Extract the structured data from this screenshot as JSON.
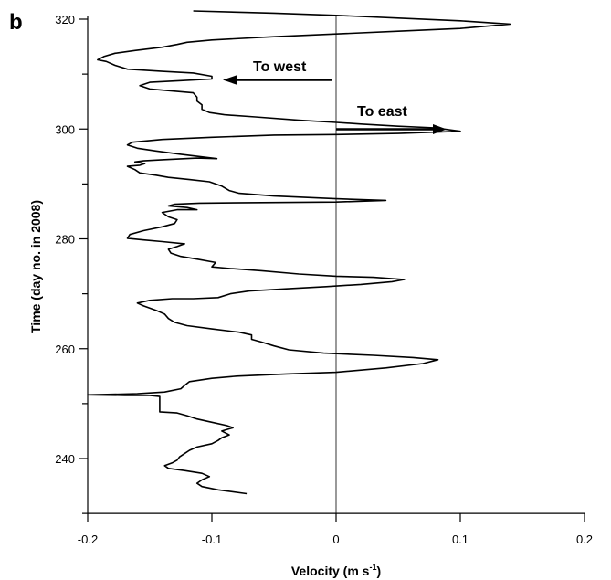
{
  "chart_data": {
    "type": "line",
    "panel_label": "b",
    "title": "",
    "xlabel": "Velocity (m s",
    "xlabel_sup": "-1",
    "xlabel_end": ")",
    "ylabel": "Time (day no. in 2008)",
    "xlim": [
      -0.2,
      0.2
    ],
    "ylim": [
      230,
      320
    ],
    "xticks": [
      -0.2,
      -0.1,
      0,
      0.1,
      0.2
    ],
    "xtick_labels": [
      "-0.2",
      "-0.1",
      "0",
      "0.1",
      "0.2"
    ],
    "yticks": [
      240,
      260,
      280,
      300,
      320
    ],
    "ytick_labels": [
      "240",
      "260",
      "280",
      "300",
      "320"
    ],
    "grid": false,
    "reference_line_x": 0,
    "annotations": [
      {
        "text": "To west",
        "direction": "west"
      },
      {
        "text": "To east",
        "direction": "east"
      }
    ],
    "series": [
      {
        "points": [
          [
            -0.072,
            233.6
          ],
          [
            -0.095,
            234.3
          ],
          [
            -0.108,
            234.9
          ],
          [
            -0.112,
            235.5
          ],
          [
            -0.108,
            236.1
          ],
          [
            -0.102,
            236.7
          ],
          [
            -0.108,
            237.3
          ],
          [
            -0.122,
            237.8
          ],
          [
            -0.135,
            238.2
          ],
          [
            -0.138,
            238.7
          ],
          [
            -0.132,
            239.2
          ],
          [
            -0.128,
            239.7
          ],
          [
            -0.126,
            240.3
          ],
          [
            -0.122,
            240.9
          ],
          [
            -0.118,
            241.5
          ],
          [
            -0.112,
            242.1
          ],
          [
            -0.1,
            242.7
          ],
          [
            -0.095,
            243.3
          ],
          [
            -0.092,
            243.8
          ],
          [
            -0.086,
            244.3
          ],
          [
            -0.092,
            245.0
          ],
          [
            -0.083,
            245.6
          ],
          [
            -0.088,
            246.0
          ],
          [
            -0.1,
            246.6
          ],
          [
            -0.112,
            247.2
          ],
          [
            -0.12,
            247.8
          ],
          [
            -0.128,
            248.3
          ],
          [
            -0.142,
            248.5
          ],
          [
            -0.142,
            251.3
          ],
          [
            -0.15,
            251.5
          ],
          [
            -0.17,
            251.5
          ],
          [
            -0.2,
            251.6
          ],
          [
            -0.16,
            251.8
          ],
          [
            -0.138,
            252.1
          ],
          [
            -0.125,
            252.7
          ],
          [
            -0.122,
            253.3
          ],
          [
            -0.118,
            254.0
          ],
          [
            -0.1,
            254.6
          ],
          [
            -0.08,
            255.0
          ],
          [
            -0.04,
            255.4
          ],
          [
            0.0,
            255.7
          ],
          [
            0.04,
            256.5
          ],
          [
            0.07,
            257.3
          ],
          [
            0.082,
            258.0
          ],
          [
            0.062,
            258.4
          ],
          [
            0.03,
            258.8
          ],
          [
            -0.01,
            259.2
          ],
          [
            -0.038,
            259.8
          ],
          [
            -0.05,
            260.5
          ],
          [
            -0.06,
            261.2
          ],
          [
            -0.068,
            261.7
          ],
          [
            -0.068,
            262.5
          ],
          [
            -0.078,
            263.0
          ],
          [
            -0.1,
            263.6
          ],
          [
            -0.12,
            264.2
          ],
          [
            -0.13,
            264.8
          ],
          [
            -0.135,
            265.5
          ],
          [
            -0.138,
            266.3
          ],
          [
            -0.145,
            267.0
          ],
          [
            -0.155,
            267.8
          ],
          [
            -0.16,
            268.3
          ],
          [
            -0.15,
            268.8
          ],
          [
            -0.132,
            269.1
          ],
          [
            -0.115,
            269.1
          ],
          [
            -0.095,
            269.3
          ],
          [
            -0.085,
            270.0
          ],
          [
            -0.07,
            270.5
          ],
          [
            -0.04,
            270.9
          ],
          [
            -0.008,
            271.3
          ],
          [
            0.02,
            271.7
          ],
          [
            0.045,
            272.2
          ],
          [
            0.055,
            272.6
          ],
          [
            0.03,
            273.0
          ],
          [
            0.0,
            273.2
          ],
          [
            -0.03,
            273.6
          ],
          [
            -0.06,
            274.2
          ],
          [
            -0.085,
            274.6
          ],
          [
            -0.1,
            274.9
          ],
          [
            -0.097,
            275.7
          ],
          [
            -0.112,
            276.3
          ],
          [
            -0.125,
            276.8
          ],
          [
            -0.133,
            277.4
          ],
          [
            -0.135,
            278.1
          ],
          [
            -0.128,
            278.6
          ],
          [
            -0.122,
            279.1
          ],
          [
            -0.14,
            279.5
          ],
          [
            -0.155,
            279.8
          ],
          [
            -0.168,
            280.1
          ],
          [
            -0.166,
            280.8
          ],
          [
            -0.155,
            281.5
          ],
          [
            -0.14,
            282.2
          ],
          [
            -0.13,
            282.8
          ],
          [
            -0.128,
            283.5
          ],
          [
            -0.135,
            284.0
          ],
          [
            -0.14,
            284.8
          ],
          [
            -0.128,
            285.3
          ],
          [
            -0.112,
            285.3
          ],
          [
            -0.12,
            285.7
          ],
          [
            -0.135,
            286.0
          ],
          [
            -0.13,
            286.3
          ],
          [
            -0.11,
            286.5
          ],
          [
            -0.06,
            286.6
          ],
          [
            0.0,
            286.7
          ],
          [
            0.04,
            287.0
          ],
          [
            0.0,
            287.3
          ],
          [
            -0.05,
            287.8
          ],
          [
            -0.078,
            288.3
          ],
          [
            -0.086,
            288.8
          ],
          [
            -0.092,
            289.6
          ],
          [
            -0.102,
            290.4
          ],
          [
            -0.118,
            290.8
          ],
          [
            -0.135,
            291.2
          ],
          [
            -0.145,
            291.6
          ],
          [
            -0.158,
            292.0
          ],
          [
            -0.162,
            292.6
          ],
          [
            -0.168,
            293.2
          ],
          [
            -0.158,
            293.4
          ],
          [
            -0.154,
            293.7
          ],
          [
            -0.162,
            294.0
          ],
          [
            -0.155,
            294.2
          ],
          [
            -0.14,
            294.4
          ],
          [
            -0.112,
            294.7
          ],
          [
            -0.096,
            294.6
          ],
          [
            -0.125,
            295.4
          ],
          [
            -0.145,
            296.0
          ],
          [
            -0.16,
            296.5
          ],
          [
            -0.168,
            297.1
          ],
          [
            -0.164,
            297.6
          ],
          [
            -0.14,
            298.1
          ],
          [
            -0.1,
            298.5
          ],
          [
            -0.05,
            298.9
          ],
          [
            0.0,
            299.0
          ],
          [
            0.05,
            299.2
          ],
          [
            0.1,
            299.6
          ],
          [
            0.08,
            300.2
          ],
          [
            0.05,
            300.5
          ],
          [
            0.02,
            300.9
          ],
          [
            0.0,
            301.2
          ],
          [
            -0.03,
            301.6
          ],
          [
            -0.065,
            302.2
          ],
          [
            -0.09,
            302.6
          ],
          [
            -0.102,
            303.0
          ],
          [
            -0.108,
            303.6
          ],
          [
            -0.108,
            304.4
          ],
          [
            -0.112,
            305.1
          ],
          [
            -0.112,
            305.8
          ],
          [
            -0.115,
            306.6
          ],
          [
            -0.13,
            306.9
          ],
          [
            -0.15,
            307.3
          ],
          [
            -0.158,
            307.9
          ],
          [
            -0.15,
            308.5
          ],
          [
            -0.125,
            308.8
          ],
          [
            -0.1,
            309.1
          ],
          [
            -0.1,
            309.6
          ],
          [
            -0.115,
            310.2
          ],
          [
            -0.14,
            310.5
          ],
          [
            -0.168,
            310.9
          ],
          [
            -0.178,
            311.6
          ],
          [
            -0.185,
            312.3
          ],
          [
            -0.192,
            312.6
          ],
          [
            -0.187,
            313.2
          ],
          [
            -0.178,
            313.8
          ],
          [
            -0.162,
            314.3
          ],
          [
            -0.14,
            314.9
          ],
          [
            -0.128,
            315.4
          ],
          [
            -0.12,
            315.8
          ],
          [
            -0.1,
            316.2
          ],
          [
            -0.05,
            316.8
          ],
          [
            0.0,
            317.3
          ],
          [
            0.05,
            317.8
          ],
          [
            0.1,
            318.3
          ],
          [
            0.14,
            319.1
          ],
          [
            0.1,
            319.7
          ],
          [
            0.05,
            320.2
          ],
          [
            0.0,
            320.7
          ],
          [
            -0.05,
            321.1
          ],
          [
            -0.115,
            321.5
          ]
        ]
      }
    ],
    "stroke_color": "#000000"
  }
}
